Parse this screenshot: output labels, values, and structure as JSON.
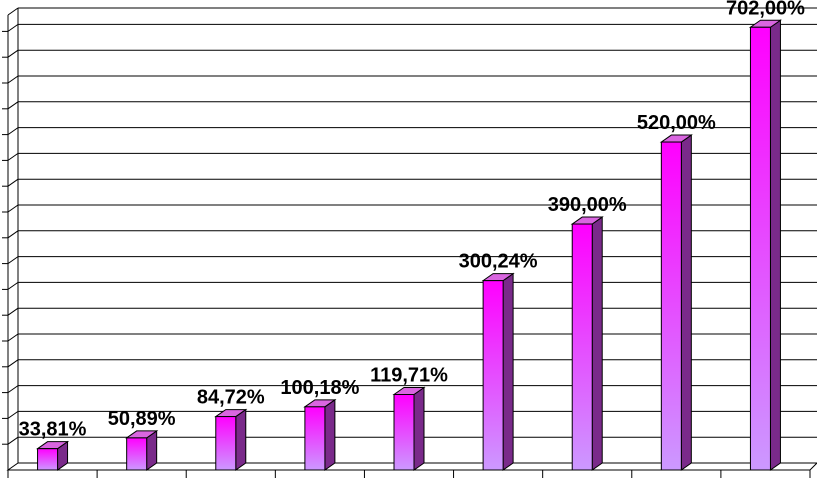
{
  "chart_data": {
    "type": "bar",
    "categories": [
      "",
      "",
      "",
      "",
      "",
      "",
      "",
      "",
      ""
    ],
    "values": [
      33.81,
      50.89,
      84.72,
      100.18,
      119.71,
      300.24,
      390.0,
      520.0,
      702.0
    ],
    "data_labels": [
      "33,81%",
      "50,89%",
      "84,72%",
      "100,18%",
      "119,71%",
      "300,24%",
      "390,00%",
      "520,00%",
      "702,00%"
    ],
    "title": "",
    "xlabel": "",
    "ylabel": "",
    "ylim": [
      0,
      704
    ],
    "grid": true,
    "bar_style": "3d",
    "colors": {
      "bar_top": "#ff00ff",
      "bar_bottom": "#cc99ff",
      "bar_side": "#7a2a8a",
      "bar_cap": "#d966e0",
      "grid": "#000000",
      "floor": "#ffffff"
    }
  }
}
